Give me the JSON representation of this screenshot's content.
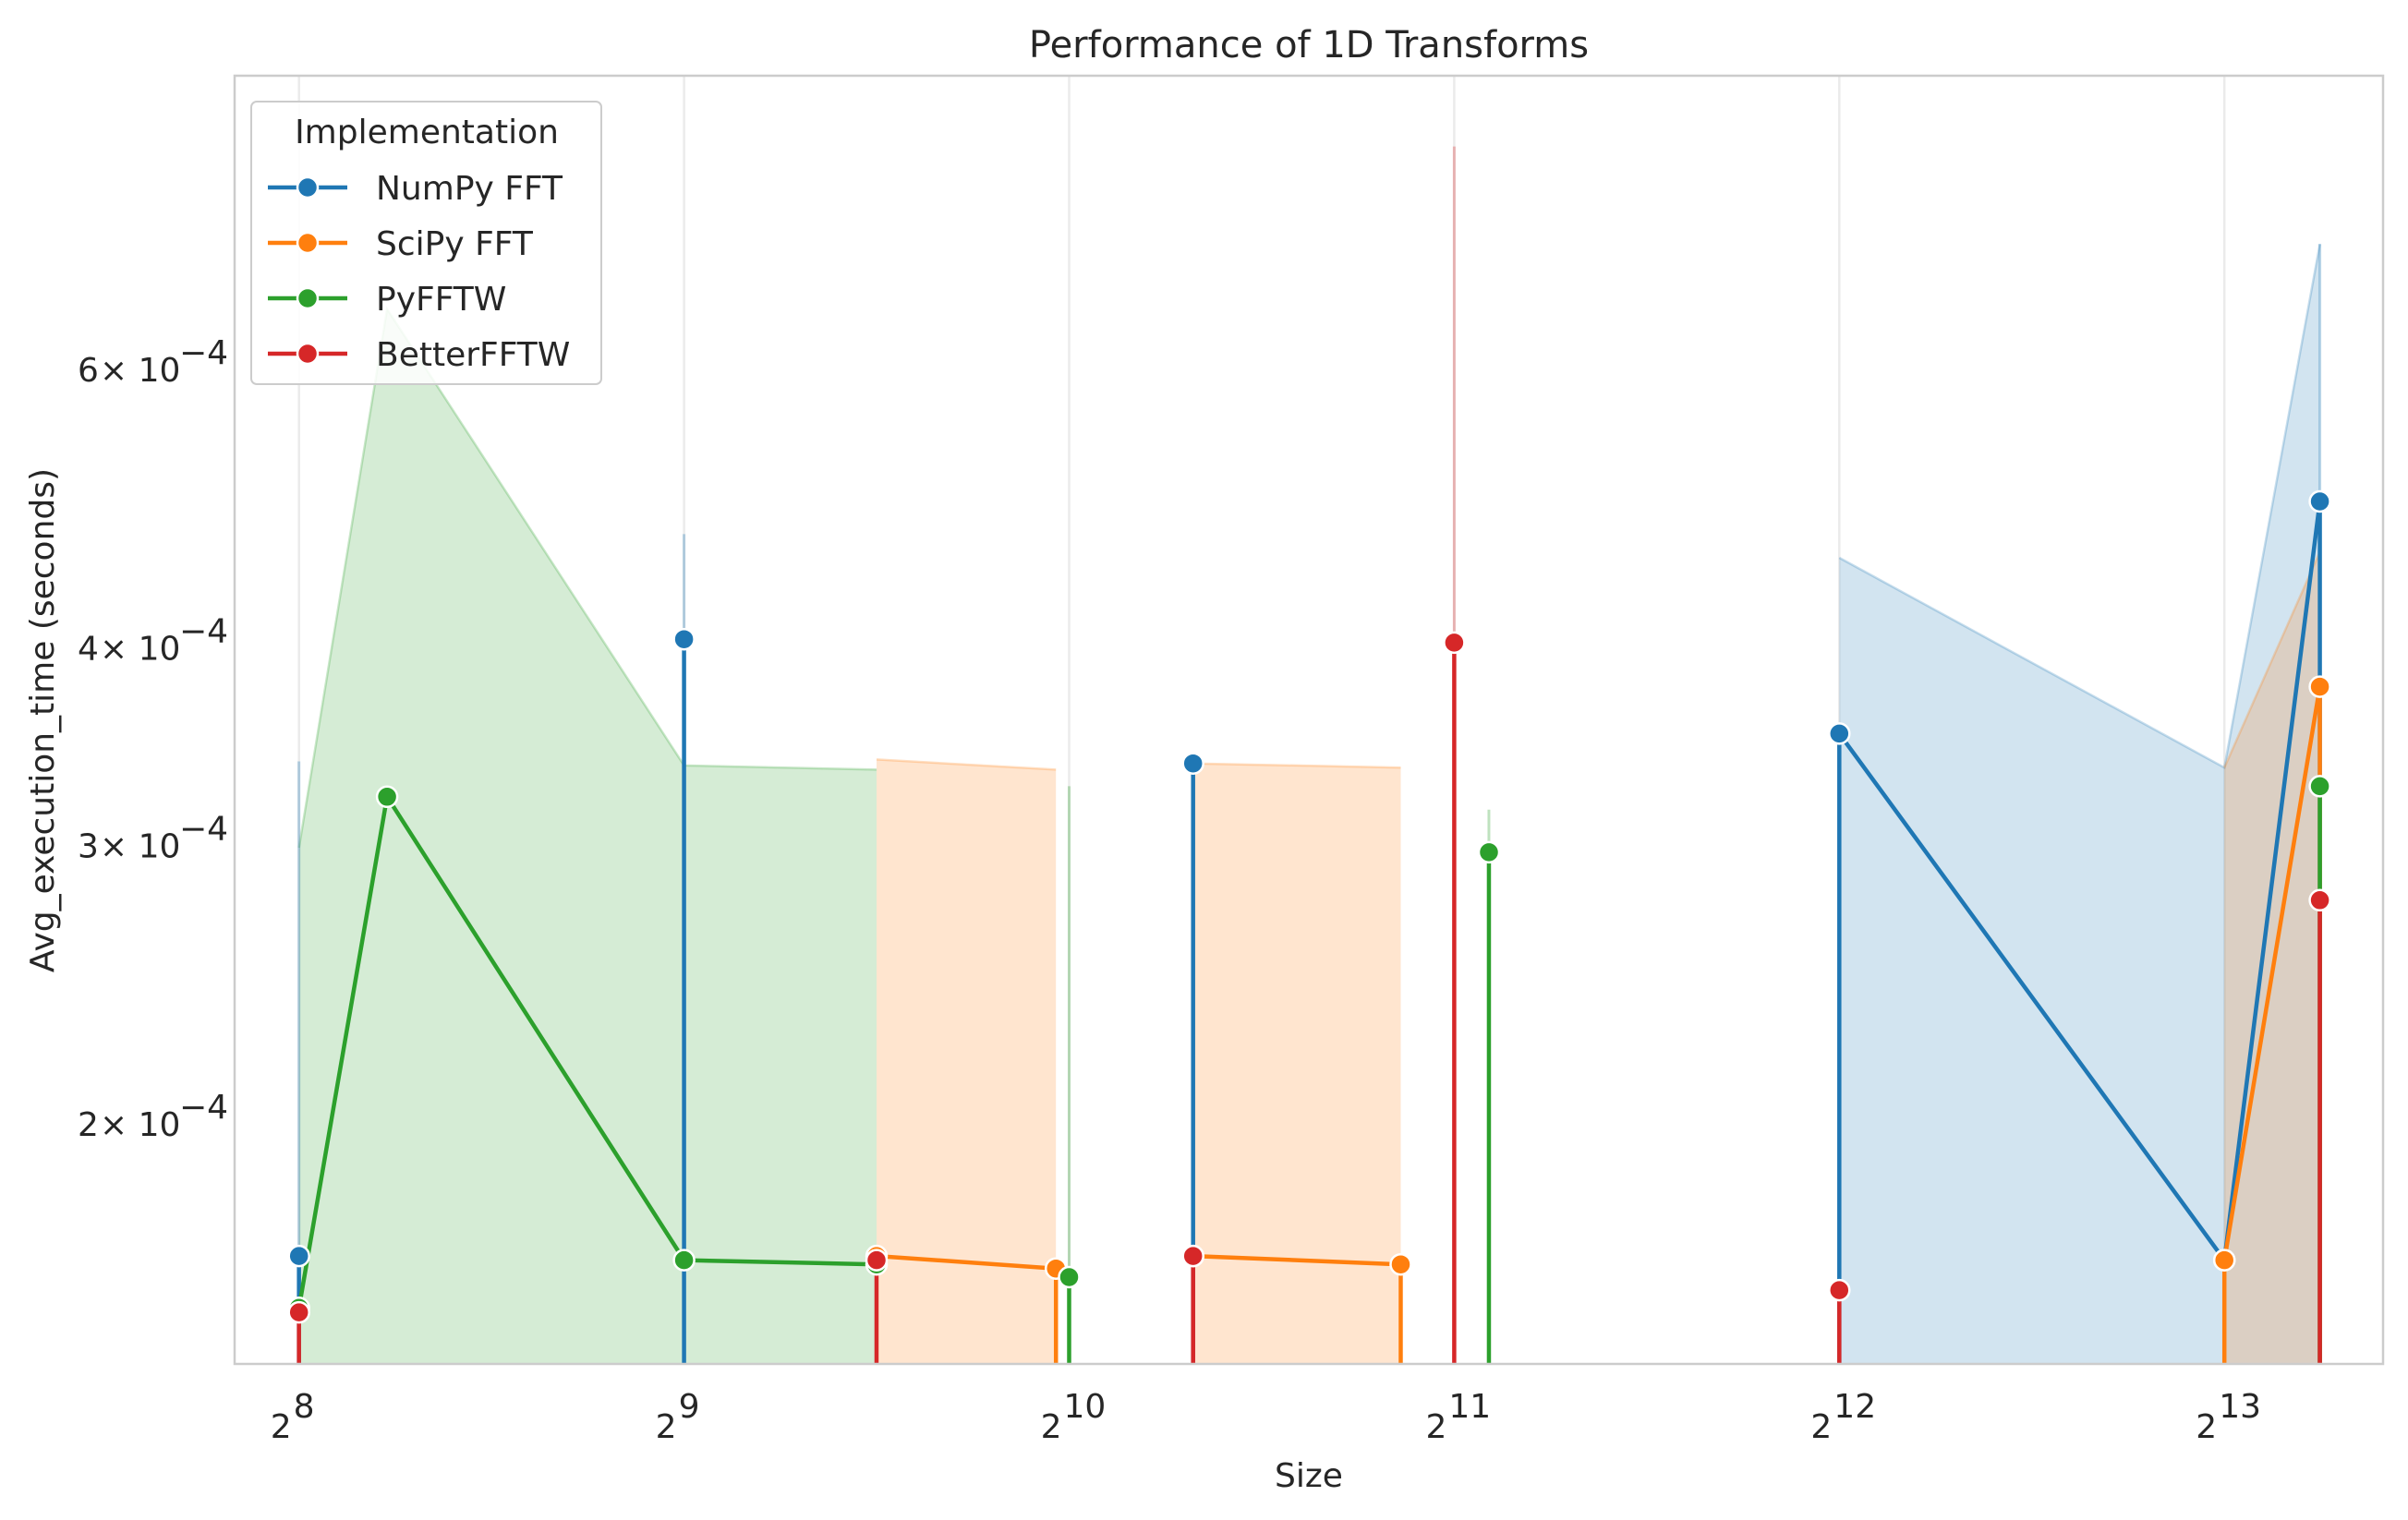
{
  "chart_data": {
    "type": "line",
    "title": "Performance of 1D Transforms",
    "xlabel": "Size",
    "ylabel": "Avg_execution_time (seconds)",
    "x_scale": "log2",
    "y_scale": "log",
    "xlim": [
      228,
      10900
    ],
    "ylim": [
      0.000141,
      0.00092
    ],
    "x_ticks": [
      {
        "value": 256,
        "base": "2",
        "exp": "8"
      },
      {
        "value": 512,
        "base": "2",
        "exp": "9"
      },
      {
        "value": 1024,
        "base": "2",
        "exp": "10"
      },
      {
        "value": 2048,
        "base": "2",
        "exp": "11"
      },
      {
        "value": 4096,
        "base": "2",
        "exp": "12"
      },
      {
        "value": 8192,
        "base": "2",
        "exp": "13"
      }
    ],
    "y_ticks": [
      {
        "value": 0.0002,
        "mant": "2",
        "base": "× 10",
        "exp": "−4"
      },
      {
        "value": 0.0003,
        "mant": "3",
        "base": "× 10",
        "exp": "−4"
      },
      {
        "value": 0.0004,
        "mant": "4",
        "base": "× 10",
        "exp": "−4"
      },
      {
        "value": 0.0006,
        "mant": "6",
        "base": "× 10",
        "exp": "−4"
      }
    ],
    "grid": true,
    "legend": {
      "title": "Implementation",
      "position": "top-left"
    },
    "series": [
      {
        "name": "NumPy FFT",
        "color": "#1f77b4",
        "points": [
          {
            "x": 256,
            "y": 0.000165
          },
          {
            "x": 512,
            "y": 0.000405
          },
          {
            "x": 1280,
            "y": 0.000338
          },
          {
            "x": 4096,
            "y": 0.000353
          },
          {
            "x": 8192,
            "y": 0.000164
          },
          {
            "x": 9728,
            "y": 0.000495
          }
        ],
        "segments": [
          [
            0
          ],
          [
            1
          ],
          [
            2
          ],
          [
            3,
            4,
            5
          ]
        ],
        "vlines": [
          {
            "x": 256,
            "y1": 0.000165
          },
          {
            "x": 512,
            "y1": 0.000405
          },
          {
            "x": 1280,
            "y1": 0.000338
          },
          {
            "x": 4096,
            "y1": 0.000353
          },
          {
            "x": 9728,
            "y1": 0.000495
          }
        ],
        "bands": [
          {
            "x": [
              4096,
              8192,
              9728
            ],
            "upper": [
              0.000456,
              0.000336,
              0.00072
            ],
            "lower": [
              0.000141,
              0.000141,
              0.000141
            ]
          }
        ],
        "ci_lines": [
          {
            "x": 256,
            "y0": 0.000141,
            "y1": 0.000339
          },
          {
            "x": 512,
            "y0": 0.000141,
            "y1": 0.000472
          },
          {
            "x": 9728,
            "y0": 0.000141,
            "y1": 0.00072
          }
        ]
      },
      {
        "name": "SciPy FFT",
        "color": "#ff7f0e",
        "points": [
          {
            "x": 724,
            "y": 0.000165
          },
          {
            "x": 1000,
            "y": 0.000162
          },
          {
            "x": 1280,
            "y": 0.000165
          },
          {
            "x": 1860,
            "y": 0.000163
          },
          {
            "x": 8192,
            "y": 0.000164
          },
          {
            "x": 9728,
            "y": 0.000378
          }
        ],
        "segments": [
          [
            0,
            1
          ],
          [
            2,
            3
          ],
          [
            4,
            5
          ]
        ],
        "vlines": [
          {
            "x": 1000,
            "y1": 0.000162
          },
          {
            "x": 1860,
            "y1": 0.000163
          },
          {
            "x": 8192,
            "y1": 0.000164
          },
          {
            "x": 9728,
            "y1": 0.000378
          }
        ],
        "bands": [
          {
            "x": [
              724,
              1000
            ],
            "upper": [
              0.00034,
              0.000335
            ],
            "lower": [
              0.000141,
              0.000141
            ]
          },
          {
            "x": [
              1280,
              1860
            ],
            "upper": [
              0.000338,
              0.000336
            ],
            "lower": [
              0.000141,
              0.000141
            ]
          },
          {
            "x": [
              8192,
              9728
            ],
            "upper": [
              0.000336,
              0.00046
            ],
            "lower": [
              0.000141,
              0.000141
            ]
          }
        ],
        "ci_lines": []
      },
      {
        "name": "PyFFTW",
        "color": "#2ca02c",
        "points": [
          {
            "x": 256,
            "y": 0.000153
          },
          {
            "x": 300,
            "y": 0.000322
          },
          {
            "x": 512,
            "y": 0.000164
          },
          {
            "x": 724,
            "y": 0.000163
          },
          {
            "x": 1024,
            "y": 0.00016
          },
          {
            "x": 2180,
            "y": 0.000297
          },
          {
            "x": 9728,
            "y": 0.000327
          }
        ],
        "segments": [
          [
            0,
            1,
            2,
            3
          ],
          [
            4
          ],
          [
            5
          ],
          [
            6
          ]
        ],
        "vlines": [
          {
            "x": 1024,
            "y1": 0.00016
          },
          {
            "x": 2180,
            "y1": 0.000297
          },
          {
            "x": 9728,
            "y1": 0.000327
          }
        ],
        "bands": [
          {
            "x": [
              256,
              300,
              512,
              724
            ],
            "upper": [
              0.000299,
              0.000655,
              0.000337,
              0.000335
            ],
            "lower": [
              0.000141,
              0.000141,
              0.000141,
              0.000141
            ]
          }
        ],
        "ci_lines": [
          {
            "x": 1024,
            "y0": 0.000141,
            "y1": 0.000327
          },
          {
            "x": 2180,
            "y0": 0.000141,
            "y1": 0.000316
          }
        ]
      },
      {
        "name": "BetterFFTW",
        "color": "#d62728",
        "points": [
          {
            "x": 256,
            "y": 0.000152
          },
          {
            "x": 724,
            "y": 0.000164
          },
          {
            "x": 1280,
            "y": 0.000165
          },
          {
            "x": 2048,
            "y": 0.000403
          },
          {
            "x": 4096,
            "y": 0.000157
          },
          {
            "x": 9728,
            "y": 0.000277
          }
        ],
        "segments": [
          [
            0
          ],
          [
            1
          ],
          [
            2
          ],
          [
            3
          ],
          [
            4
          ],
          [
            5
          ]
        ],
        "vlines": [
          {
            "x": 256,
            "y1": 0.000152
          },
          {
            "x": 724,
            "y1": 0.000164
          },
          {
            "x": 1280,
            "y1": 0.000165
          },
          {
            "x": 2048,
            "y1": 0.000403
          },
          {
            "x": 4096,
            "y1": 0.000157
          },
          {
            "x": 9728,
            "y1": 0.000277
          }
        ],
        "bands": [],
        "ci_lines": [
          {
            "x": 2048,
            "y0": 0.000141,
            "y1": 0.00083
          }
        ]
      }
    ]
  }
}
